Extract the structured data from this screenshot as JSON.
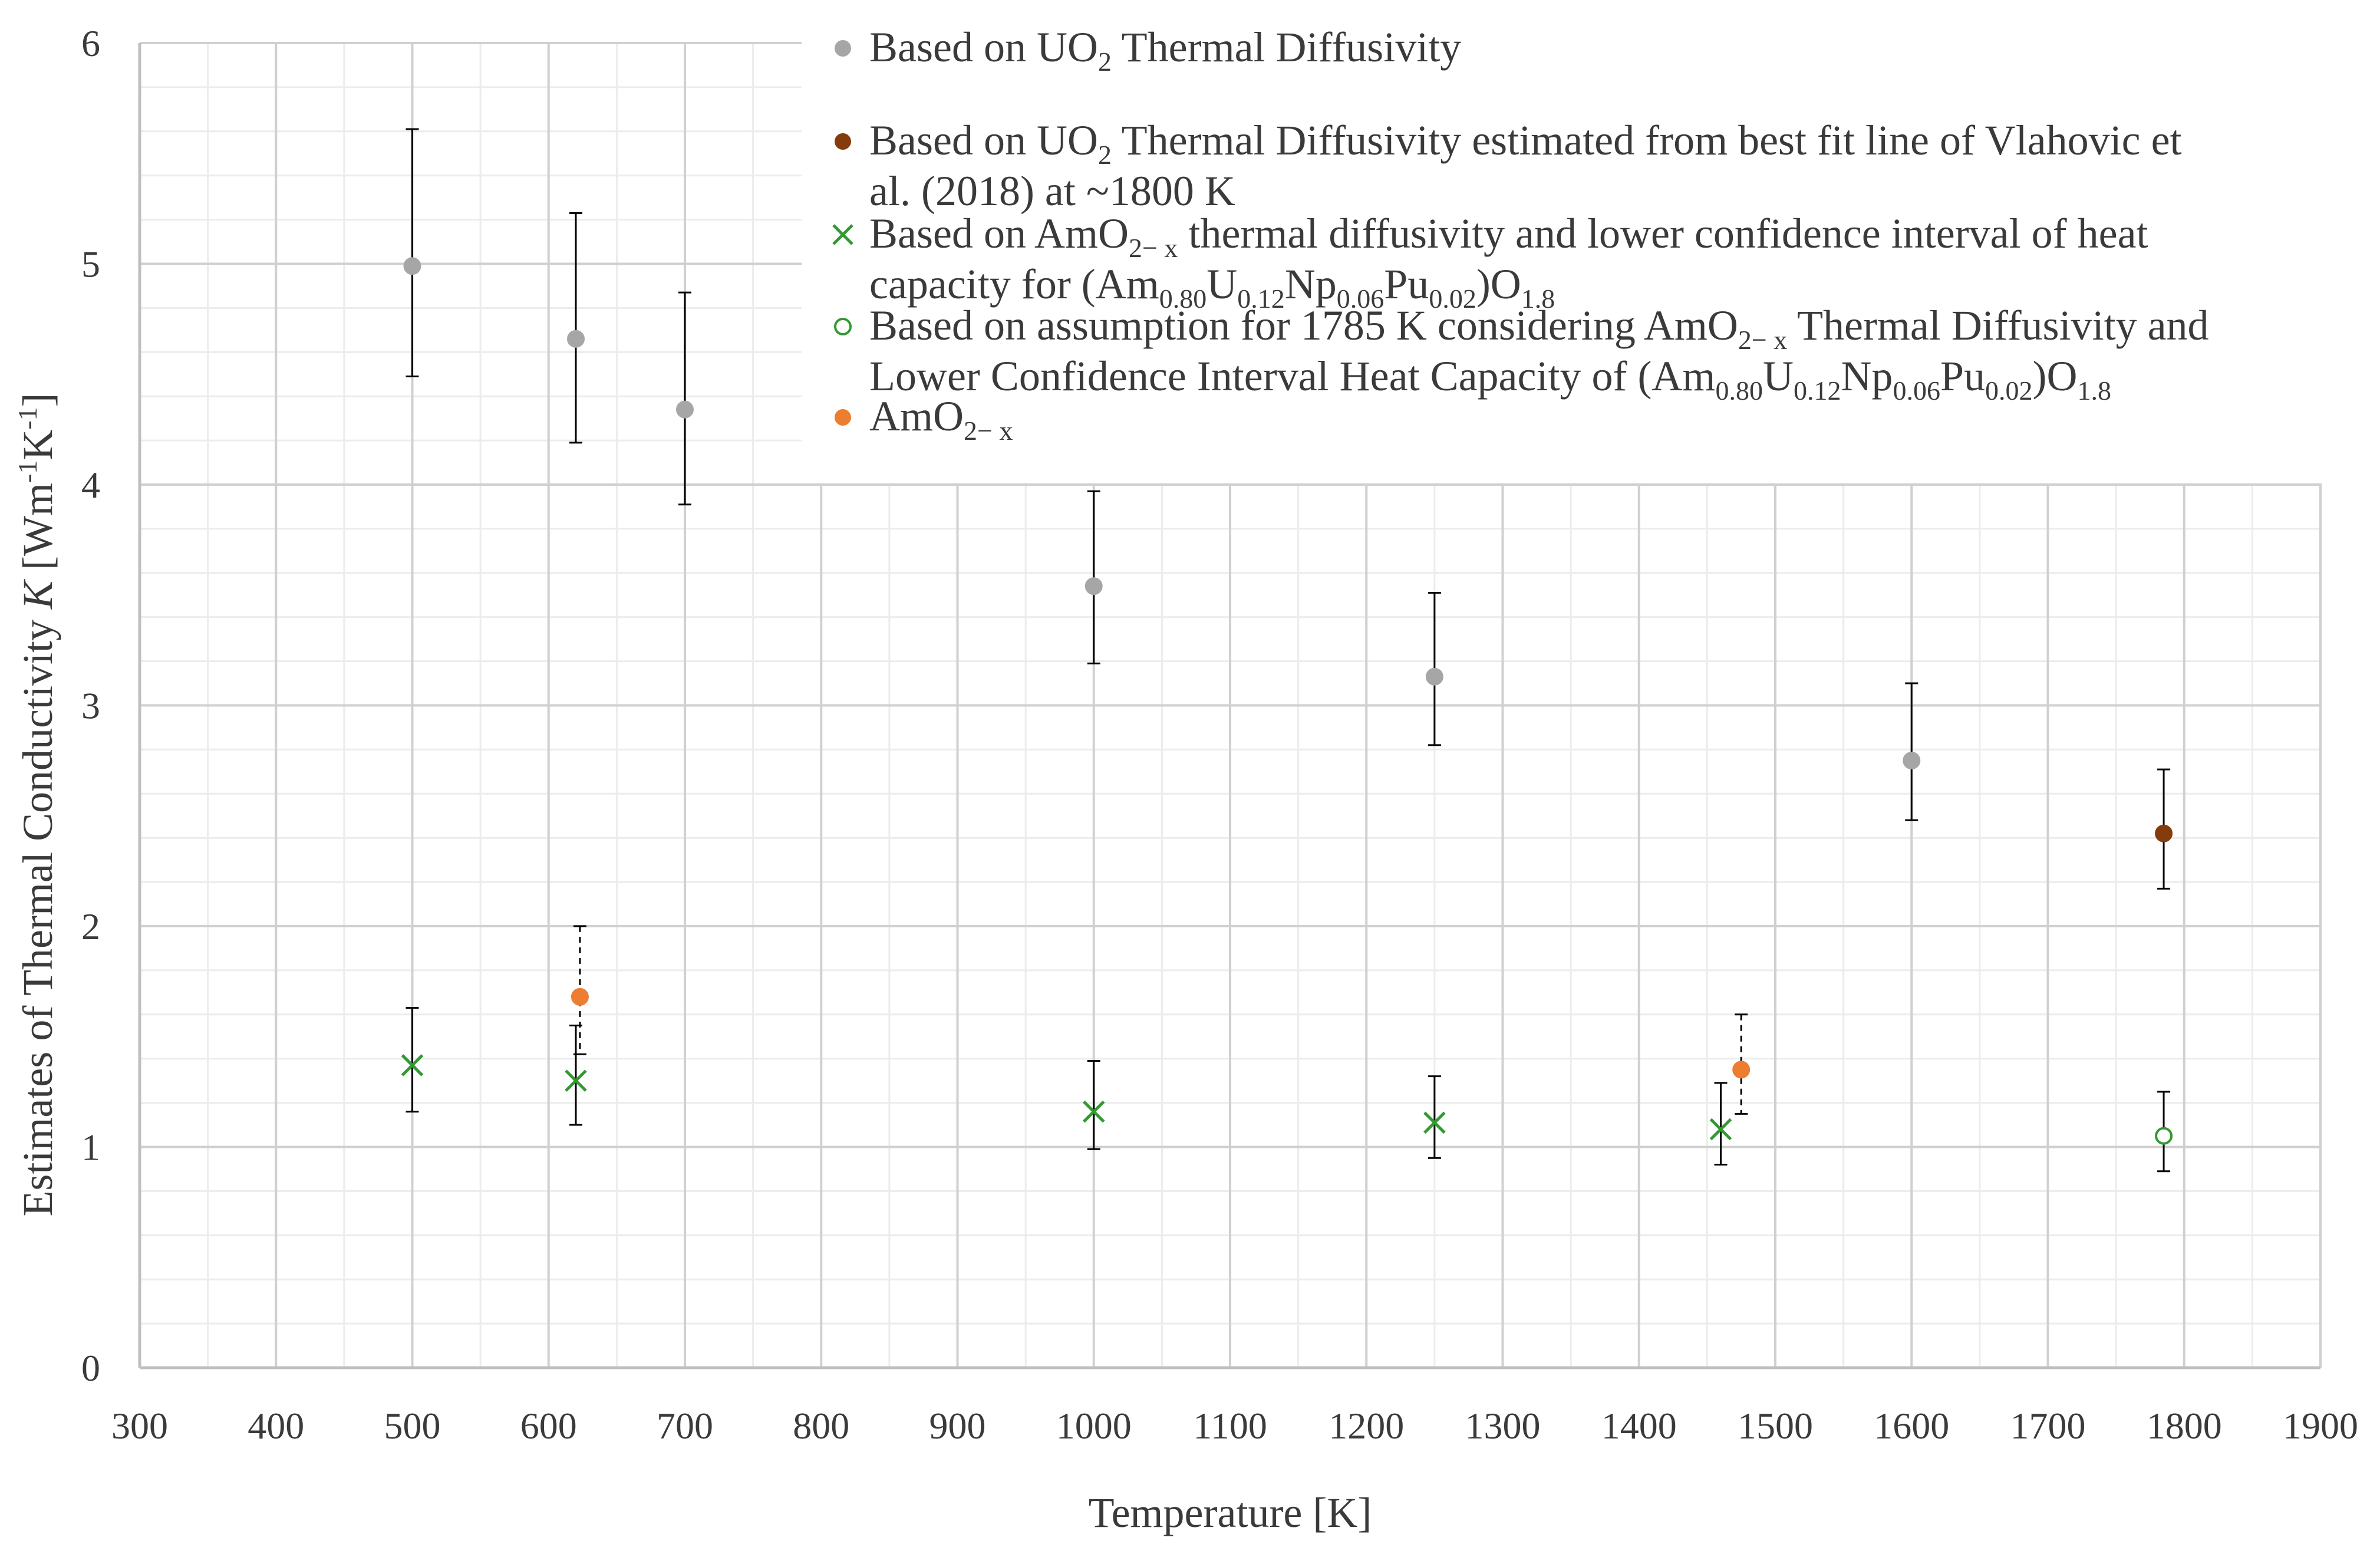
{
  "chart_data": {
    "type": "scatter",
    "title": "",
    "xlabel": "Temperature [K]",
    "ylabel": "Estimates  of  Thermal  Conductivity  K  [Wm-1K-1]",
    "xlim": [
      300,
      1900
    ],
    "ylim": [
      0,
      6
    ],
    "x_ticks": [
      "300",
      "400",
      "500",
      "600",
      "700",
      "800",
      "900",
      "1000",
      "1100",
      "1200",
      "1300",
      "1400",
      "1500",
      "1600",
      "1700",
      "1800",
      "1900"
    ],
    "y_ticks": [
      "0",
      "1",
      "2",
      "3",
      "4",
      "5",
      "6"
    ],
    "grid": true,
    "legend_position": "top-right",
    "legend_lines": [
      [
        "Based on UO",
        "2",
        " Thermal Diffusivity"
      ],
      [
        "Based on UO",
        "2",
        " Thermal Diffusivity estimated from best fit line of Vlahovic et"
      ],
      [
        "al. (2018) at ~1800 K"
      ],
      [
        "Based on AmO",
        "2− x",
        " thermal diffusivity and lower confidence interval of heat"
      ],
      [
        "capacity for (Am",
        "0.80",
        "U",
        "0.12",
        "Np",
        "0.06",
        "Pu",
        "0.02",
        ")O",
        "1.8"
      ],
      [
        "Based on assumption for 1785 K considering AmO",
        "2− x",
        " Thermal Diffusivity and"
      ],
      [
        "Lower Confidence Interval Heat Capacity of (Am",
        "0.80",
        "U",
        "0.12",
        "Np",
        "0.06",
        "Pu",
        "0.02",
        ")O",
        "1.8"
      ],
      [
        "AmO",
        "2− x"
      ]
    ],
    "series": [
      {
        "name": "Based on UO2 Thermal Diffusivity",
        "marker": "circle",
        "color": "#a6a6a6",
        "error_style": "solid",
        "x": [
          500,
          620,
          700,
          1000,
          1250,
          1600
        ],
        "y": [
          4.99,
          4.66,
          4.34,
          3.54,
          3.13,
          2.75
        ],
        "err_low": [
          4.49,
          4.19,
          3.91,
          3.19,
          2.82,
          2.48
        ],
        "err_high": [
          5.61,
          5.23,
          4.87,
          3.97,
          3.51,
          3.1
        ]
      },
      {
        "name": "Based on UO2 Thermal Diffusivity estimated from best fit line of Vlahovic et al. (2018) at ~1800 K",
        "marker": "circle",
        "color": "#843c0c",
        "error_style": "solid",
        "x": [
          1785
        ],
        "y": [
          2.42
        ],
        "err_low": [
          2.17
        ],
        "err_high": [
          2.71
        ]
      },
      {
        "name": "Based on AmO2-x thermal diffusivity and lower confidence interval of heat capacity for (Am0.80U0.12Np0.06Pu0.02)O1.8",
        "marker": "x",
        "color": "#339933",
        "error_style": "solid",
        "x": [
          500,
          620,
          1000,
          1250,
          1460
        ],
        "y": [
          1.37,
          1.3,
          1.16,
          1.11,
          1.08
        ],
        "err_low": [
          1.16,
          1.1,
          0.99,
          0.95,
          0.92
        ],
        "err_high": [
          1.63,
          1.55,
          1.39,
          1.32,
          1.29
        ]
      },
      {
        "name": "Based on assumption for 1785 K considering AmO2-x Thermal Diffusivity and Lower Confidence Interval Heat Capacity of (Am0.80U0.12Np0.06Pu0.02)O1.8",
        "marker": "open-circle",
        "color": "#339933",
        "error_style": "solid",
        "x": [
          1785
        ],
        "y": [
          1.05
        ],
        "err_low": [
          0.89
        ],
        "err_high": [
          1.25
        ]
      },
      {
        "name": "AmO2-x",
        "marker": "circle",
        "color": "#ed7d31",
        "error_style": "dashed",
        "x": [
          623,
          1475
        ],
        "y": [
          1.68,
          1.35
        ],
        "err_low": [
          1.42,
          1.15
        ],
        "err_high": [
          2.0,
          1.6
        ]
      }
    ]
  }
}
